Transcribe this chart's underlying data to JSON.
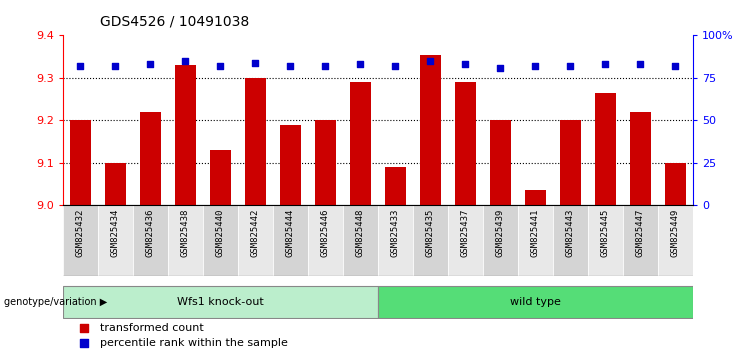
{
  "title": "GDS4526 / 10491038",
  "categories": [
    "GSM825432",
    "GSM825434",
    "GSM825436",
    "GSM825438",
    "GSM825440",
    "GSM825442",
    "GSM825444",
    "GSM825446",
    "GSM825448",
    "GSM825433",
    "GSM825435",
    "GSM825437",
    "GSM825439",
    "GSM825441",
    "GSM825443",
    "GSM825445",
    "GSM825447",
    "GSM825449"
  ],
  "bar_values": [
    9.2,
    9.1,
    9.22,
    9.33,
    9.13,
    9.3,
    9.19,
    9.2,
    9.29,
    9.09,
    9.355,
    9.29,
    9.2,
    9.035,
    9.2,
    9.265,
    9.22,
    9.1
  ],
  "percentile_values": [
    82,
    82,
    83,
    85,
    82,
    84,
    82,
    82,
    83,
    82,
    85,
    83,
    81,
    82,
    82,
    83,
    83,
    82
  ],
  "ylim_left": [
    9.0,
    9.4
  ],
  "ylim_right": [
    0,
    100
  ],
  "right_ticks": [
    0,
    25,
    50,
    75,
    100
  ],
  "right_tick_labels": [
    "0",
    "25",
    "50",
    "75",
    "100%"
  ],
  "left_ticks": [
    9.0,
    9.1,
    9.2,
    9.3,
    9.4
  ],
  "bar_color": "#cc0000",
  "percentile_color": "#0000cc",
  "group1_label": "Wfs1 knock-out",
  "group2_label": "wild type",
  "group1_color": "#bbeecc",
  "group2_color": "#55dd77",
  "group1_count": 9,
  "group2_count": 9,
  "legend_bar_label": "transformed count",
  "legend_pct_label": "percentile rank within the sample",
  "genotype_label": "genotype/variation",
  "cell_color_odd": "#d4d4d4",
  "cell_color_even": "#e8e8e8",
  "white": "#ffffff"
}
